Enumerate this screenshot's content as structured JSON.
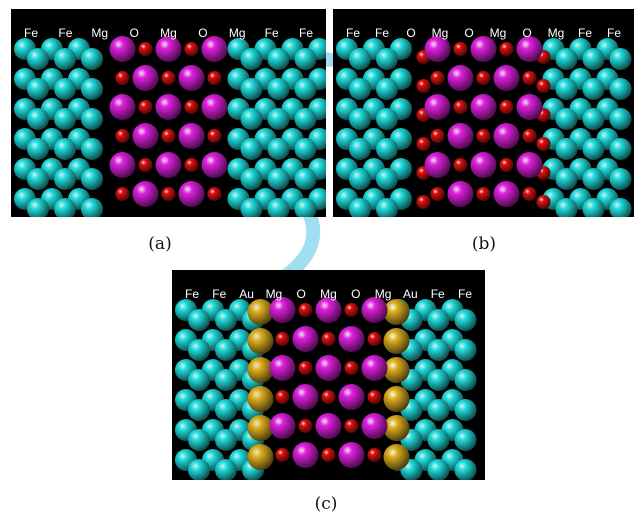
{
  "panels": [
    {
      "id": "a",
      "caption": "(a)",
      "labels": [
        "Fe",
        "Fe",
        "Mg",
        "O",
        "Mg",
        "O",
        "Mg",
        "Fe",
        "Fe"
      ],
      "interface": "none"
    },
    {
      "id": "b",
      "caption": "(b)",
      "labels": [
        "Fe",
        "Fe",
        "O",
        "Mg",
        "O",
        "Mg",
        "O",
        "Mg",
        "Fe",
        "Fe"
      ],
      "interface": "oxygen"
    },
    {
      "id": "c",
      "caption": "(c)",
      "labels": [
        "Fe",
        "Fe",
        "Au",
        "Mg",
        "O",
        "Mg",
        "O",
        "Mg",
        "Au",
        "Fe",
        "Fe"
      ],
      "interface": "gold"
    }
  ],
  "colors": {
    "Fe": "#22e0e0",
    "Mg": "#e020e0",
    "O": "#e01010",
    "Au": "#e0b020",
    "background": "#000000",
    "watermark": "#8fd8f0"
  }
}
